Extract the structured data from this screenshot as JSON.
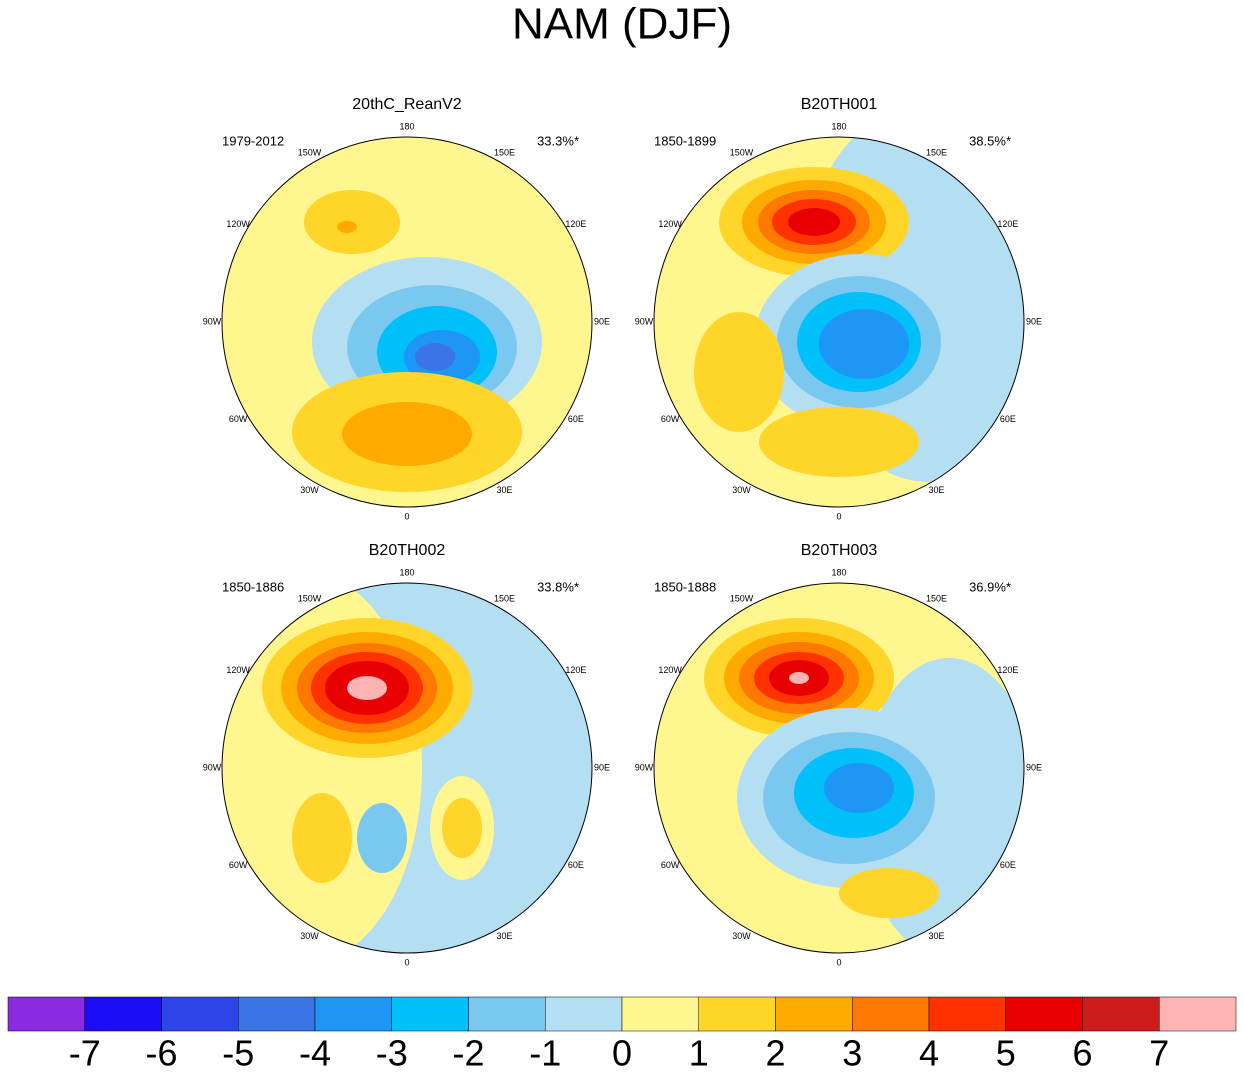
{
  "title": "NAM (DJF)",
  "panels": [
    {
      "name": "20thC_ReanV2",
      "period": "1979-2012",
      "percent": "33.3%*"
    },
    {
      "name": "B20TH001",
      "period": "1850-1899",
      "percent": "38.5%*"
    },
    {
      "name": "B20TH002",
      "period": "1850-1886",
      "percent": "33.8%*"
    },
    {
      "name": "B20TH003",
      "period": "1850-1888",
      "percent": "36.9%*"
    }
  ],
  "longitude_labels": [
    "180",
    "150W",
    "150E",
    "120W",
    "120E",
    "90W",
    "90E",
    "60W",
    "60E",
    "30W",
    "30E",
    "0"
  ],
  "colorbar": {
    "colors": [
      "#8a2be2",
      "#1a0cf5",
      "#2d44e6",
      "#3a74e6",
      "#1e96f5",
      "#00c0fa",
      "#7ac8f0",
      "#b4def2",
      "#fff68f",
      "#ffd52a",
      "#ffaa00",
      "#ff7800",
      "#ff3200",
      "#e80000",
      "#cc1c1c",
      "#ffb4b4"
    ],
    "labels": [
      "-7",
      "-6",
      "-5",
      "-4",
      "-3",
      "-2",
      "-1",
      "0",
      "1",
      "2",
      "3",
      "4",
      "5",
      "6",
      "7"
    ]
  }
}
